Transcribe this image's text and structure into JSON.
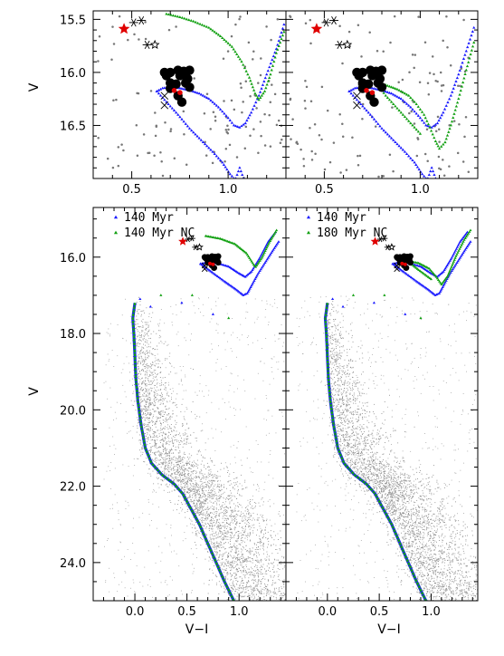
{
  "chart_data": [
    {
      "id": "top-left",
      "type": "scatter",
      "xlabel": "",
      "ylabel": "V",
      "xlim": [
        0.3,
        1.3
      ],
      "ylim": [
        17.0,
        15.42
      ],
      "xticks": [
        0.5,
        1.0
      ],
      "xtick_labels": [
        "0.5",
        "1.0"
      ],
      "yticks": [
        15.5,
        16.0,
        16.5
      ],
      "ytick_labels": [
        "15.5",
        "16.0",
        "16.5"
      ],
      "legend": [],
      "blue_iso": [
        [
          0.63,
          16.18
        ],
        [
          0.66,
          16.15
        ],
        [
          0.7,
          16.14
        ],
        [
          0.75,
          16.15
        ],
        [
          0.8,
          16.17
        ],
        [
          0.85,
          16.2
        ],
        [
          0.9,
          16.25
        ],
        [
          0.95,
          16.33
        ],
        [
          1.0,
          16.43
        ],
        [
          1.03,
          16.5
        ],
        [
          1.06,
          16.52
        ],
        [
          1.09,
          16.48
        ],
        [
          1.12,
          16.38
        ],
        [
          1.16,
          16.22
        ],
        [
          1.2,
          16.02
        ],
        [
          1.25,
          15.78
        ],
        [
          1.29,
          15.55
        ]
      ],
      "blue_low": [
        [
          0.63,
          16.18
        ],
        [
          0.68,
          16.28
        ],
        [
          0.74,
          16.4
        ],
        [
          0.8,
          16.53
        ],
        [
          0.86,
          16.64
        ],
        [
          0.92,
          16.75
        ],
        [
          0.97,
          16.85
        ],
        [
          1.01,
          16.96
        ],
        [
          1.03,
          17.0
        ]
      ],
      "blue_tail": [
        [
          1.04,
          17.0
        ],
        [
          1.06,
          16.9
        ],
        [
          1.08,
          17.0
        ]
      ],
      "green_iso": [
        [
          0.68,
          15.45
        ],
        [
          0.75,
          15.48
        ],
        [
          0.82,
          15.52
        ],
        [
          0.9,
          15.58
        ],
        [
          0.96,
          15.66
        ],
        [
          1.02,
          15.76
        ],
        [
          1.07,
          15.9
        ],
        [
          1.11,
          16.05
        ],
        [
          1.14,
          16.2
        ],
        [
          1.16,
          16.26
        ],
        [
          1.19,
          16.18
        ],
        [
          1.22,
          16.02
        ],
        [
          1.25,
          15.82
        ],
        [
          1.29,
          15.62
        ]
      ],
      "green_low": [],
      "black_dots": [
        [
          0.67,
          16.0
        ],
        [
          0.7,
          16.0
        ],
        [
          0.74,
          15.98
        ],
        [
          0.77,
          15.99
        ],
        [
          0.8,
          15.98
        ],
        [
          0.68,
          16.03
        ],
        [
          0.75,
          16.03
        ],
        [
          0.79,
          16.06
        ],
        [
          0.7,
          16.1
        ],
        [
          0.73,
          16.11
        ],
        [
          0.78,
          16.1
        ],
        [
          0.7,
          16.15
        ],
        [
          0.8,
          16.14
        ],
        [
          0.74,
          16.22
        ],
        [
          0.76,
          16.28
        ]
      ],
      "red_dots": [
        [
          0.72,
          16.17
        ],
        [
          0.75,
          16.19
        ]
      ],
      "red_star": [
        0.46,
        15.59
      ],
      "stars_open": [
        [
          0.62,
          15.74
        ]
      ],
      "asterisks": [
        [
          0.51,
          15.53
        ],
        [
          0.58,
          15.74
        ],
        [
          0.55,
          15.51
        ]
      ],
      "crosses": [
        [
          0.67,
          16.31
        ],
        [
          0.67,
          16.22
        ]
      ]
    },
    {
      "id": "top-right",
      "type": "scatter",
      "xlabel": "",
      "ylabel": "",
      "xlim": [
        0.3,
        1.3
      ],
      "ylim": [
        17.0,
        15.42
      ],
      "xticks": [
        0.5,
        1.0
      ],
      "xtick_labels": [
        "0.5",
        "1.0"
      ],
      "yticks": [
        15.5,
        16.0,
        16.5
      ],
      "ytick_labels": [],
      "legend": [],
      "blue_iso": [
        [
          0.63,
          16.18
        ],
        [
          0.66,
          16.15
        ],
        [
          0.7,
          16.14
        ],
        [
          0.75,
          16.15
        ],
        [
          0.8,
          16.17
        ],
        [
          0.85,
          16.2
        ],
        [
          0.9,
          16.25
        ],
        [
          0.95,
          16.33
        ],
        [
          1.0,
          16.43
        ],
        [
          1.03,
          16.5
        ],
        [
          1.06,
          16.52
        ],
        [
          1.09,
          16.48
        ],
        [
          1.12,
          16.38
        ],
        [
          1.16,
          16.22
        ],
        [
          1.2,
          16.02
        ],
        [
          1.24,
          15.8
        ],
        [
          1.28,
          15.58
        ]
      ],
      "blue_low": [
        [
          0.63,
          16.18
        ],
        [
          0.68,
          16.28
        ],
        [
          0.74,
          16.4
        ],
        [
          0.8,
          16.53
        ],
        [
          0.86,
          16.64
        ],
        [
          0.92,
          16.75
        ],
        [
          0.97,
          16.85
        ],
        [
          1.01,
          16.96
        ],
        [
          1.03,
          17.0
        ]
      ],
      "blue_tail": [
        [
          1.04,
          17.0
        ],
        [
          1.06,
          16.9
        ],
        [
          1.08,
          17.0
        ]
      ],
      "green_iso": [
        [
          0.77,
          16.1
        ],
        [
          0.82,
          16.12
        ],
        [
          0.88,
          16.16
        ],
        [
          0.94,
          16.22
        ],
        [
          0.98,
          16.3
        ],
        [
          1.02,
          16.4
        ],
        [
          1.05,
          16.52
        ],
        [
          1.08,
          16.65
        ],
        [
          1.1,
          16.72
        ],
        [
          1.13,
          16.66
        ],
        [
          1.16,
          16.5
        ],
        [
          1.2,
          16.25
        ],
        [
          1.24,
          15.98
        ],
        [
          1.28,
          15.72
        ]
      ],
      "green_low": [
        [
          0.77,
          16.1
        ],
        [
          0.82,
          16.22
        ],
        [
          0.88,
          16.34
        ],
        [
          0.94,
          16.46
        ],
        [
          1.0,
          16.58
        ]
      ],
      "black_dots": [
        [
          0.67,
          16.0
        ],
        [
          0.7,
          16.0
        ],
        [
          0.74,
          15.98
        ],
        [
          0.77,
          15.99
        ],
        [
          0.8,
          15.98
        ],
        [
          0.68,
          16.03
        ],
        [
          0.75,
          16.03
        ],
        [
          0.79,
          16.06
        ],
        [
          0.7,
          16.1
        ],
        [
          0.73,
          16.11
        ],
        [
          0.78,
          16.1
        ],
        [
          0.7,
          16.15
        ],
        [
          0.8,
          16.14
        ],
        [
          0.74,
          16.22
        ],
        [
          0.76,
          16.28
        ]
      ],
      "red_dots": [
        [
          0.72,
          16.17
        ],
        [
          0.75,
          16.19
        ]
      ],
      "red_star": [
        0.46,
        15.59
      ],
      "stars_open": [
        [
          0.62,
          15.74
        ]
      ],
      "asterisks": [
        [
          0.51,
          15.53
        ],
        [
          0.58,
          15.74
        ],
        [
          0.55,
          15.51
        ]
      ],
      "crosses": [
        [
          0.67,
          16.31
        ],
        [
          0.67,
          16.22
        ]
      ]
    },
    {
      "id": "bottom-left",
      "type": "scatter",
      "xlabel": "V−I",
      "ylabel": "V",
      "xlim": [
        -0.4,
        1.45
      ],
      "ylim": [
        25.0,
        14.7
      ],
      "xticks": [
        0.0,
        0.5,
        1.0
      ],
      "xtick_labels": [
        "0.0",
        "0.5",
        "1.0"
      ],
      "yticks": [
        16.0,
        18.0,
        20.0,
        22.0,
        24.0
      ],
      "ytick_labels": [
        "16.0",
        "18.0",
        "20.0",
        "22.0",
        "24.0"
      ],
      "legend": [
        {
          "label": "140 Myr",
          "color": "#1a1aff",
          "marker": "triangle"
        },
        {
          "label": "140 Myr NC",
          "color": "#11a011",
          "marker": "triangle"
        }
      ],
      "ms_curve": [
        [
          0.0,
          17.2
        ],
        [
          -0.02,
          17.6
        ],
        [
          -0.01,
          18.0
        ],
        [
          0.0,
          18.6
        ],
        [
          0.01,
          19.2
        ],
        [
          0.03,
          19.8
        ],
        [
          0.06,
          20.4
        ],
        [
          0.1,
          21.0
        ],
        [
          0.16,
          21.4
        ],
        [
          0.26,
          21.7
        ],
        [
          0.38,
          21.95
        ],
        [
          0.46,
          22.2
        ],
        [
          0.54,
          22.6
        ],
        [
          0.62,
          23.0
        ],
        [
          0.7,
          23.5
        ],
        [
          0.78,
          24.0
        ],
        [
          0.86,
          24.5
        ],
        [
          0.95,
          25.0
        ]
      ],
      "blue_iso": [
        [
          0.63,
          16.18
        ],
        [
          0.7,
          16.14
        ],
        [
          0.8,
          16.17
        ],
        [
          0.9,
          16.25
        ],
        [
          1.0,
          16.43
        ],
        [
          1.06,
          16.52
        ],
        [
          1.12,
          16.38
        ],
        [
          1.2,
          16.02
        ],
        [
          1.28,
          15.6
        ],
        [
          1.35,
          15.35
        ]
      ],
      "blue_low": [
        [
          0.63,
          16.18
        ],
        [
          0.74,
          16.4
        ],
        [
          0.86,
          16.64
        ],
        [
          0.97,
          16.85
        ],
        [
          1.04,
          17.0
        ],
        [
          1.08,
          16.95
        ],
        [
          1.12,
          16.75
        ],
        [
          1.18,
          16.45
        ],
        [
          1.25,
          16.15
        ],
        [
          1.32,
          15.85
        ],
        [
          1.38,
          15.6
        ]
      ],
      "green_iso": [
        [
          0.68,
          15.45
        ],
        [
          0.82,
          15.52
        ],
        [
          0.96,
          15.66
        ],
        [
          1.07,
          15.9
        ],
        [
          1.14,
          16.2
        ],
        [
          1.16,
          16.26
        ],
        [
          1.22,
          16.02
        ],
        [
          1.29,
          15.62
        ],
        [
          1.36,
          15.3
        ]
      ],
      "green_low": [],
      "sparse_tri": [
        [
          0.05,
          17.1
        ],
        [
          0.25,
          17.0
        ],
        [
          0.45,
          17.2
        ],
        [
          0.55,
          17.0
        ],
        [
          0.75,
          17.5
        ],
        [
          0.9,
          17.6
        ],
        [
          0.15,
          17.3
        ]
      ],
      "black_dots": [
        [
          0.67,
          16.0
        ],
        [
          0.7,
          16.0
        ],
        [
          0.74,
          15.98
        ],
        [
          0.77,
          15.99
        ],
        [
          0.8,
          15.98
        ],
        [
          0.68,
          16.03
        ],
        [
          0.75,
          16.03
        ],
        [
          0.79,
          16.06
        ],
        [
          0.7,
          16.1
        ],
        [
          0.73,
          16.11
        ],
        [
          0.78,
          16.1
        ],
        [
          0.7,
          16.15
        ],
        [
          0.8,
          16.14
        ],
        [
          0.74,
          16.22
        ],
        [
          0.76,
          16.28
        ]
      ],
      "red_dots": [
        [
          0.72,
          16.17
        ],
        [
          0.75,
          16.19
        ]
      ],
      "red_star": [
        0.46,
        15.59
      ],
      "stars_open": [
        [
          0.62,
          15.74
        ]
      ],
      "asterisks": [
        [
          0.51,
          15.53
        ],
        [
          0.58,
          15.74
        ],
        [
          0.55,
          15.51
        ]
      ],
      "crosses": [
        [
          0.67,
          16.31
        ],
        [
          0.67,
          16.22
        ]
      ]
    },
    {
      "id": "bottom-right",
      "type": "scatter",
      "xlabel": "V−I",
      "ylabel": "",
      "xlim": [
        -0.4,
        1.45
      ],
      "ylim": [
        25.0,
        14.7
      ],
      "xticks": [
        0.0,
        0.5,
        1.0
      ],
      "xtick_labels": [
        "0.0",
        "0.5",
        "1.0"
      ],
      "yticks": [
        16.0,
        18.0,
        20.0,
        22.0,
        24.0
      ],
      "ytick_labels": [],
      "legend": [
        {
          "label": "140 Myr",
          "color": "#1a1aff",
          "marker": "triangle"
        },
        {
          "label": "180 Myr NC",
          "color": "#11a011",
          "marker": "triangle"
        }
      ],
      "ms_curve": [
        [
          0.0,
          17.2
        ],
        [
          -0.02,
          17.6
        ],
        [
          -0.01,
          18.0
        ],
        [
          0.0,
          18.6
        ],
        [
          0.01,
          19.2
        ],
        [
          0.03,
          19.8
        ],
        [
          0.06,
          20.4
        ],
        [
          0.1,
          21.0
        ],
        [
          0.16,
          21.4
        ],
        [
          0.26,
          21.7
        ],
        [
          0.38,
          21.95
        ],
        [
          0.46,
          22.2
        ],
        [
          0.54,
          22.6
        ],
        [
          0.62,
          23.0
        ],
        [
          0.7,
          23.5
        ],
        [
          0.78,
          24.0
        ],
        [
          0.86,
          24.5
        ],
        [
          0.95,
          25.0
        ]
      ],
      "blue_iso": [
        [
          0.63,
          16.18
        ],
        [
          0.7,
          16.14
        ],
        [
          0.8,
          16.17
        ],
        [
          0.9,
          16.25
        ],
        [
          1.0,
          16.43
        ],
        [
          1.06,
          16.52
        ],
        [
          1.12,
          16.38
        ],
        [
          1.2,
          16.02
        ],
        [
          1.28,
          15.6
        ],
        [
          1.35,
          15.35
        ]
      ],
      "blue_low": [
        [
          0.63,
          16.18
        ],
        [
          0.74,
          16.4
        ],
        [
          0.86,
          16.64
        ],
        [
          0.97,
          16.85
        ],
        [
          1.04,
          17.0
        ],
        [
          1.08,
          16.95
        ],
        [
          1.12,
          16.75
        ],
        [
          1.18,
          16.45
        ],
        [
          1.25,
          16.15
        ],
        [
          1.32,
          15.85
        ],
        [
          1.38,
          15.6
        ]
      ],
      "green_iso": [
        [
          0.77,
          16.1
        ],
        [
          0.88,
          16.16
        ],
        [
          0.98,
          16.3
        ],
        [
          1.05,
          16.52
        ],
        [
          1.1,
          16.72
        ],
        [
          1.16,
          16.5
        ],
        [
          1.24,
          15.98
        ],
        [
          1.32,
          15.55
        ],
        [
          1.38,
          15.3
        ]
      ],
      "green_low": [
        [
          0.77,
          16.1
        ],
        [
          0.88,
          16.34
        ],
        [
          1.0,
          16.58
        ]
      ],
      "sparse_tri": [
        [
          0.05,
          17.1
        ],
        [
          0.25,
          17.0
        ],
        [
          0.45,
          17.2
        ],
        [
          0.55,
          17.0
        ],
        [
          0.75,
          17.5
        ],
        [
          0.9,
          17.6
        ],
        [
          0.15,
          17.3
        ]
      ],
      "black_dots": [
        [
          0.67,
          16.0
        ],
        [
          0.7,
          16.0
        ],
        [
          0.74,
          15.98
        ],
        [
          0.77,
          15.99
        ],
        [
          0.8,
          15.98
        ],
        [
          0.68,
          16.03
        ],
        [
          0.75,
          16.03
        ],
        [
          0.79,
          16.06
        ],
        [
          0.7,
          16.1
        ],
        [
          0.73,
          16.11
        ],
        [
          0.78,
          16.1
        ],
        [
          0.7,
          16.15
        ],
        [
          0.8,
          16.14
        ],
        [
          0.74,
          16.22
        ],
        [
          0.76,
          16.28
        ]
      ],
      "red_dots": [
        [
          0.72,
          16.17
        ],
        [
          0.75,
          16.19
        ]
      ],
      "red_star": [
        0.46,
        15.59
      ],
      "stars_open": [
        [
          0.62,
          15.74
        ]
      ],
      "asterisks": [
        [
          0.51,
          15.53
        ],
        [
          0.58,
          15.74
        ],
        [
          0.55,
          15.51
        ]
      ],
      "crosses": [
        [
          0.67,
          16.31
        ],
        [
          0.67,
          16.22
        ]
      ]
    }
  ],
  "colors": {
    "blue": "#1a1aff",
    "green": "#11a011",
    "black": "#000000",
    "red": "#e00000",
    "field": "#8a8a8a"
  }
}
